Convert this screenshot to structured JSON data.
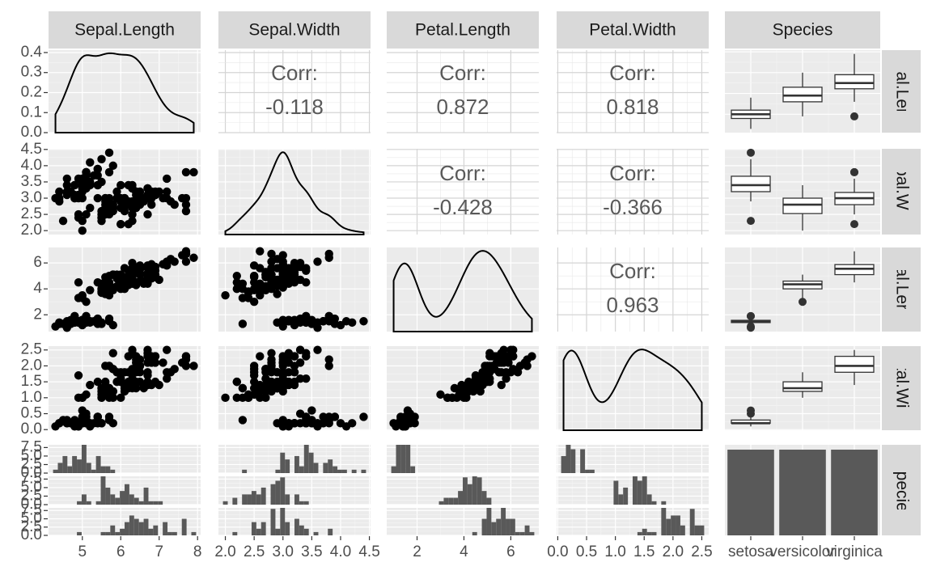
{
  "chart_data": {
    "type": "pairs",
    "variables": [
      "Sepal.Length",
      "Sepal.Width",
      "Petal.Length",
      "Petal.Width",
      "Species"
    ],
    "groups": [
      {
        "name": "setosa",
        "rows": [
          [
            5.1,
            3.5,
            1.4,
            0.2
          ],
          [
            4.9,
            3.0,
            1.4,
            0.2
          ],
          [
            4.7,
            3.2,
            1.3,
            0.2
          ],
          [
            4.6,
            3.1,
            1.5,
            0.2
          ],
          [
            5.0,
            3.6,
            1.4,
            0.2
          ],
          [
            5.4,
            3.9,
            1.7,
            0.4
          ],
          [
            4.6,
            3.4,
            1.4,
            0.3
          ],
          [
            5.0,
            3.4,
            1.5,
            0.2
          ],
          [
            4.4,
            2.9,
            1.4,
            0.2
          ],
          [
            4.9,
            3.1,
            1.5,
            0.1
          ],
          [
            5.4,
            3.7,
            1.5,
            0.2
          ],
          [
            4.8,
            3.4,
            1.6,
            0.2
          ],
          [
            4.8,
            3.0,
            1.4,
            0.1
          ],
          [
            4.3,
            3.0,
            1.1,
            0.1
          ],
          [
            5.8,
            4.0,
            1.2,
            0.2
          ],
          [
            5.7,
            4.4,
            1.5,
            0.4
          ],
          [
            5.4,
            3.9,
            1.3,
            0.4
          ],
          [
            5.1,
            3.5,
            1.4,
            0.3
          ],
          [
            5.7,
            3.8,
            1.7,
            0.3
          ],
          [
            5.1,
            3.8,
            1.5,
            0.3
          ],
          [
            5.4,
            3.4,
            1.7,
            0.2
          ],
          [
            5.1,
            3.7,
            1.5,
            0.4
          ],
          [
            4.6,
            3.6,
            1.0,
            0.2
          ],
          [
            5.1,
            3.3,
            1.7,
            0.5
          ],
          [
            4.8,
            3.4,
            1.9,
            0.2
          ],
          [
            5.0,
            3.0,
            1.6,
            0.2
          ],
          [
            5.0,
            3.4,
            1.6,
            0.4
          ],
          [
            5.2,
            3.5,
            1.5,
            0.2
          ],
          [
            5.2,
            3.4,
            1.4,
            0.2
          ],
          [
            4.7,
            3.2,
            1.6,
            0.2
          ],
          [
            4.8,
            3.1,
            1.6,
            0.2
          ],
          [
            5.4,
            3.4,
            1.5,
            0.4
          ],
          [
            5.2,
            4.1,
            1.5,
            0.1
          ],
          [
            5.5,
            4.2,
            1.4,
            0.2
          ],
          [
            4.9,
            3.1,
            1.5,
            0.2
          ],
          [
            5.0,
            3.2,
            1.2,
            0.2
          ],
          [
            5.5,
            3.5,
            1.3,
            0.2
          ],
          [
            4.9,
            3.6,
            1.4,
            0.1
          ],
          [
            4.4,
            3.0,
            1.3,
            0.2
          ],
          [
            5.1,
            3.4,
            1.5,
            0.2
          ],
          [
            5.0,
            3.5,
            1.3,
            0.3
          ],
          [
            4.5,
            2.3,
            1.3,
            0.3
          ],
          [
            4.4,
            3.2,
            1.3,
            0.2
          ],
          [
            5.0,
            3.5,
            1.6,
            0.6
          ],
          [
            5.1,
            3.8,
            1.9,
            0.4
          ],
          [
            4.8,
            3.0,
            1.4,
            0.3
          ],
          [
            5.1,
            3.8,
            1.6,
            0.2
          ],
          [
            4.6,
            3.2,
            1.4,
            0.2
          ],
          [
            5.3,
            3.7,
            1.5,
            0.2
          ],
          [
            5.0,
            3.3,
            1.4,
            0.2
          ]
        ]
      },
      {
        "name": "versicolor",
        "rows": [
          [
            7.0,
            3.2,
            4.7,
            1.4
          ],
          [
            6.4,
            3.2,
            4.5,
            1.5
          ],
          [
            6.9,
            3.1,
            4.9,
            1.5
          ],
          [
            5.5,
            2.3,
            4.0,
            1.3
          ],
          [
            6.5,
            2.8,
            4.6,
            1.5
          ],
          [
            5.7,
            2.8,
            4.5,
            1.3
          ],
          [
            6.3,
            3.3,
            4.7,
            1.6
          ],
          [
            4.9,
            2.4,
            3.3,
            1.0
          ],
          [
            6.6,
            2.9,
            4.6,
            1.3
          ],
          [
            5.2,
            2.7,
            3.9,
            1.4
          ],
          [
            5.0,
            2.0,
            3.5,
            1.0
          ],
          [
            5.9,
            3.0,
            4.2,
            1.5
          ],
          [
            6.0,
            2.2,
            4.0,
            1.0
          ],
          [
            6.1,
            2.9,
            4.7,
            1.4
          ],
          [
            5.6,
            2.9,
            3.6,
            1.3
          ],
          [
            6.7,
            3.1,
            4.4,
            1.4
          ],
          [
            5.6,
            3.0,
            4.5,
            1.5
          ],
          [
            5.8,
            2.7,
            4.1,
            1.0
          ],
          [
            6.2,
            2.2,
            4.5,
            1.5
          ],
          [
            5.6,
            2.5,
            3.9,
            1.1
          ],
          [
            5.9,
            3.2,
            4.8,
            1.8
          ],
          [
            6.1,
            2.8,
            4.0,
            1.3
          ],
          [
            6.3,
            2.5,
            4.9,
            1.5
          ],
          [
            6.1,
            2.8,
            4.7,
            1.2
          ],
          [
            6.4,
            2.9,
            4.3,
            1.3
          ],
          [
            6.6,
            3.0,
            4.4,
            1.4
          ],
          [
            6.8,
            2.8,
            4.8,
            1.4
          ],
          [
            6.7,
            3.0,
            5.0,
            1.7
          ],
          [
            6.0,
            2.9,
            4.5,
            1.5
          ],
          [
            5.7,
            2.6,
            3.5,
            1.0
          ],
          [
            5.5,
            2.4,
            3.8,
            1.1
          ],
          [
            5.5,
            2.4,
            3.7,
            1.0
          ],
          [
            5.8,
            2.7,
            3.9,
            1.2
          ],
          [
            6.0,
            2.7,
            5.1,
            1.6
          ],
          [
            5.4,
            3.0,
            4.5,
            1.5
          ],
          [
            6.0,
            3.4,
            4.5,
            1.6
          ],
          [
            6.7,
            3.1,
            4.7,
            1.5
          ],
          [
            6.3,
            2.3,
            4.4,
            1.3
          ],
          [
            5.6,
            3.0,
            4.1,
            1.3
          ],
          [
            5.5,
            2.5,
            4.0,
            1.3
          ],
          [
            5.5,
            2.6,
            4.4,
            1.2
          ],
          [
            6.1,
            3.0,
            4.6,
            1.4
          ],
          [
            5.8,
            2.6,
            4.0,
            1.2
          ],
          [
            5.0,
            2.3,
            3.3,
            1.0
          ],
          [
            5.6,
            2.7,
            4.2,
            1.3
          ],
          [
            5.7,
            3.0,
            4.2,
            1.2
          ],
          [
            5.7,
            2.9,
            4.2,
            1.3
          ],
          [
            6.2,
            2.9,
            4.3,
            1.3
          ],
          [
            5.1,
            2.5,
            3.0,
            1.1
          ],
          [
            5.7,
            2.8,
            4.1,
            1.3
          ]
        ]
      },
      {
        "name": "virginica",
        "rows": [
          [
            6.3,
            3.3,
            6.0,
            2.5
          ],
          [
            5.8,
            2.7,
            5.1,
            1.9
          ],
          [
            7.1,
            3.0,
            5.9,
            2.1
          ],
          [
            6.3,
            2.9,
            5.6,
            1.8
          ],
          [
            6.5,
            3.0,
            5.8,
            2.2
          ],
          [
            7.6,
            3.0,
            6.6,
            2.1
          ],
          [
            4.9,
            2.5,
            4.5,
            1.7
          ],
          [
            7.3,
            2.9,
            6.3,
            1.8
          ],
          [
            6.7,
            2.5,
            5.8,
            1.8
          ],
          [
            7.2,
            3.6,
            6.1,
            2.5
          ],
          [
            6.5,
            3.2,
            5.1,
            2.0
          ],
          [
            6.4,
            2.7,
            5.3,
            1.9
          ],
          [
            6.8,
            3.0,
            5.5,
            2.1
          ],
          [
            5.7,
            2.5,
            5.0,
            2.0
          ],
          [
            5.8,
            2.8,
            5.1,
            2.4
          ],
          [
            6.4,
            3.2,
            5.3,
            2.3
          ],
          [
            6.5,
            3.0,
            5.5,
            1.8
          ],
          [
            7.7,
            3.8,
            6.7,
            2.2
          ],
          [
            7.7,
            2.6,
            6.9,
            2.3
          ],
          [
            6.0,
            2.2,
            5.0,
            1.5
          ],
          [
            6.9,
            3.2,
            5.7,
            2.3
          ],
          [
            5.6,
            2.8,
            4.9,
            2.0
          ],
          [
            7.7,
            2.8,
            6.7,
            2.0
          ],
          [
            6.3,
            2.7,
            4.9,
            1.8
          ],
          [
            6.7,
            3.3,
            5.7,
            2.1
          ],
          [
            7.2,
            3.2,
            6.0,
            1.8
          ],
          [
            6.2,
            2.8,
            4.8,
            1.8
          ],
          [
            6.1,
            3.0,
            4.9,
            1.8
          ],
          [
            6.4,
            2.8,
            5.6,
            2.1
          ],
          [
            7.2,
            3.0,
            5.8,
            1.6
          ],
          [
            7.4,
            2.8,
            6.1,
            1.9
          ],
          [
            7.9,
            3.8,
            6.4,
            2.0
          ],
          [
            6.4,
            2.8,
            5.6,
            2.2
          ],
          [
            6.3,
            2.8,
            5.1,
            1.5
          ],
          [
            6.1,
            2.6,
            5.6,
            1.4
          ],
          [
            7.7,
            3.0,
            6.1,
            2.3
          ],
          [
            6.3,
            3.4,
            5.6,
            2.4
          ],
          [
            6.4,
            3.1,
            5.5,
            1.8
          ],
          [
            6.0,
            3.0,
            4.8,
            1.8
          ],
          [
            6.9,
            3.1,
            5.4,
            2.1
          ],
          [
            6.7,
            3.1,
            5.6,
            2.4
          ],
          [
            6.9,
            3.1,
            5.1,
            2.3
          ],
          [
            5.8,
            2.7,
            5.1,
            1.9
          ],
          [
            6.8,
            3.2,
            5.9,
            2.3
          ],
          [
            6.7,
            3.3,
            5.7,
            2.5
          ],
          [
            6.7,
            3.0,
            5.2,
            2.3
          ],
          [
            6.3,
            2.5,
            5.0,
            1.9
          ],
          [
            6.5,
            3.0,
            5.2,
            2.0
          ],
          [
            6.2,
            3.4,
            5.4,
            2.3
          ],
          [
            5.9,
            3.0,
            5.1,
            1.8
          ]
        ]
      }
    ],
    "corr_label": "Corr:",
    "correlations": [
      -0.118,
      0.872,
      0.818,
      -0.428,
      -0.366,
      0.963
    ],
    "lims": [
      [
        4.12,
        8.08
      ],
      [
        1.88,
        4.52
      ],
      [
        0.705,
        7.195
      ],
      [
        -0.02,
        2.62
      ]
    ],
    "ticks": [
      [
        5,
        6,
        7,
        8
      ],
      [
        {
          "value": 2,
          "label": "2.0"
        },
        2.5,
        {
          "value": 3,
          "label": "3.0"
        },
        3.5,
        {
          "value": 4,
          "label": "4.0"
        },
        4.5
      ],
      [
        2,
        4,
        6
      ],
      [
        {
          "value": 0,
          "label": "0.0"
        },
        0.5,
        {
          "value": 1,
          "label": "1.0"
        },
        1.5,
        {
          "value": 2,
          "label": "2.0"
        },
        2.5
      ]
    ],
    "density_ylim": [
      0,
      0.412
    ],
    "density_yticks": [
      {
        "value": 0,
        "label": "0.0"
      },
      0.1,
      0.2,
      0.3,
      0.4
    ],
    "hist_ylim": [
      0,
      8.3
    ],
    "hist_yticks": [
      {
        "value": 0,
        "label": "0.0"
      },
      2.5,
      {
        "value": 5,
        "label": "5.0"
      },
      7.5
    ],
    "point_color": "#000000",
    "bar_color": "#595959",
    "panel_color": "#ebebeb",
    "strip_color": "#d9d9d9"
  }
}
